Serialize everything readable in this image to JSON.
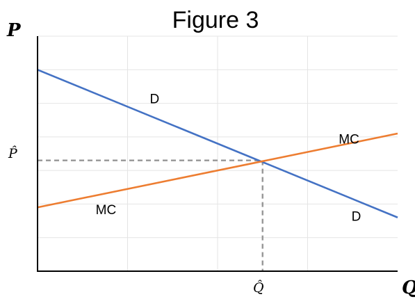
{
  "chart_data": {
    "type": "line",
    "title": "Figure 3",
    "xlabel": "Q",
    "ylabel": "P",
    "xlim": [
      0,
      10
    ],
    "ylim": [
      0,
      7
    ],
    "grid": true,
    "series": [
      {
        "name": "D",
        "x": [
          0,
          10
        ],
        "y": [
          6.0,
          1.6
        ],
        "color": "#4472c4"
      },
      {
        "name": "MC",
        "x": [
          0,
          10
        ],
        "y": [
          1.9,
          4.1
        ],
        "color": "#ed7d31"
      }
    ],
    "equilibrium": {
      "x": 6.25,
      "y": 3.3,
      "x_label": "Q̂",
      "y_label": "P̂"
    },
    "curve_labels": [
      {
        "text": "D",
        "x": 3.25,
        "y": 5.0
      },
      {
        "text": "D",
        "x": 8.85,
        "y": 1.5
      },
      {
        "text": "MC",
        "x": 8.65,
        "y": 3.8
      },
      {
        "text": "MC",
        "x": 1.9,
        "y": 1.7
      }
    ]
  }
}
